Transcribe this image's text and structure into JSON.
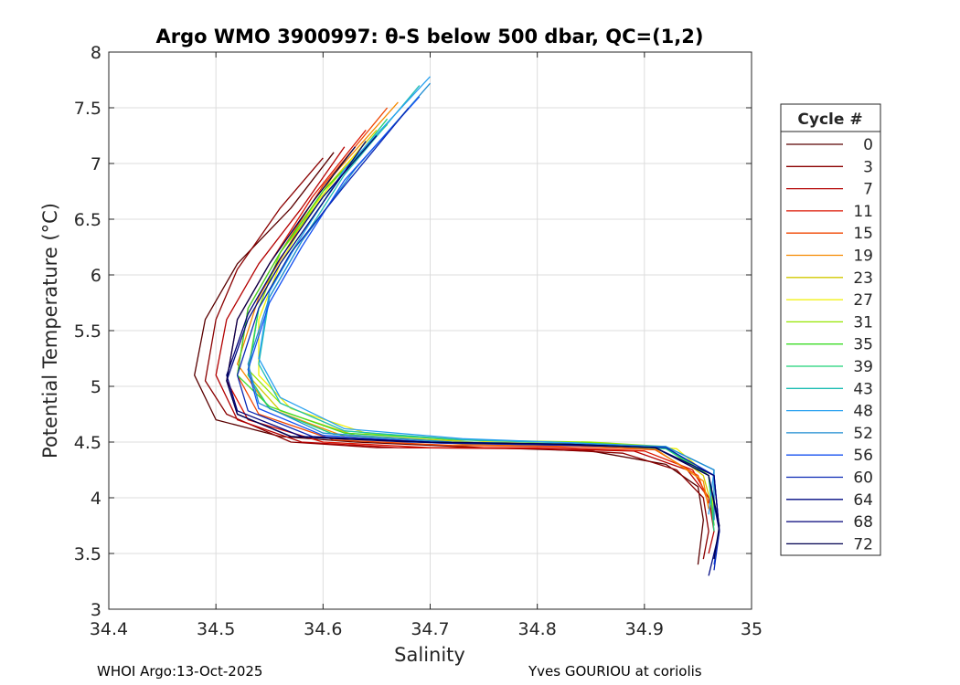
{
  "chart_data": {
    "type": "line",
    "title": "Argo WMO 3900997: θ-S below 500 dbar,  QC=(1,2)",
    "xlabel": "Salinity",
    "ylabel": "Potential Temperature (°C)",
    "xlim": [
      34.4,
      35.0
    ],
    "ylim": [
      3,
      8
    ],
    "xticks": [
      34.4,
      34.5,
      34.6,
      34.7,
      34.8,
      34.9,
      35.0
    ],
    "xtick_labels": [
      "34.4",
      "34.5",
      "34.6",
      "34.7",
      "34.8",
      "34.9",
      "35"
    ],
    "yticks": [
      3,
      3.5,
      4,
      4.5,
      5,
      5.5,
      6,
      6.5,
      7,
      7.5,
      8
    ],
    "ytick_labels": [
      "3",
      "3.5",
      "4",
      "4.5",
      "5",
      "5.5",
      "6",
      "6.5",
      "7",
      "7.5",
      "8"
    ],
    "grid": true,
    "legend_position": "outside-right",
    "legend_title": "Cycle #",
    "series": [
      {
        "name": "0",
        "color": "#5a0000",
        "points": [
          [
            34.61,
            7.1
          ],
          [
            34.57,
            6.6
          ],
          [
            34.52,
            6.1
          ],
          [
            34.49,
            5.6
          ],
          [
            34.48,
            5.1
          ],
          [
            34.5,
            4.7
          ],
          [
            34.56,
            4.55
          ],
          [
            34.63,
            4.5
          ],
          [
            34.75,
            4.45
          ],
          [
            34.85,
            4.42
          ],
          [
            34.92,
            4.3
          ],
          [
            34.95,
            4.1
          ],
          [
            34.955,
            3.8
          ],
          [
            34.95,
            3.4
          ]
        ]
      },
      {
        "name": "3",
        "color": "#8a0000",
        "points": [
          [
            34.6,
            7.05
          ],
          [
            34.56,
            6.6
          ],
          [
            34.52,
            6.05
          ],
          [
            34.5,
            5.6
          ],
          [
            34.49,
            5.05
          ],
          [
            34.51,
            4.75
          ],
          [
            34.57,
            4.5
          ],
          [
            34.65,
            4.45
          ],
          [
            34.78,
            4.45
          ],
          [
            34.88,
            4.4
          ],
          [
            34.93,
            4.25
          ],
          [
            34.955,
            4.0
          ],
          [
            34.96,
            3.7
          ],
          [
            34.955,
            3.45
          ]
        ]
      },
      {
        "name": "7",
        "color": "#b40000",
        "points": [
          [
            34.62,
            7.15
          ],
          [
            34.58,
            6.6
          ],
          [
            34.54,
            6.1
          ],
          [
            34.51,
            5.6
          ],
          [
            34.5,
            5.1
          ],
          [
            34.52,
            4.7
          ],
          [
            34.58,
            4.5
          ],
          [
            34.67,
            4.45
          ],
          [
            34.8,
            4.44
          ],
          [
            34.89,
            4.42
          ],
          [
            34.94,
            4.25
          ],
          [
            34.96,
            4.0
          ],
          [
            34.965,
            3.7
          ],
          [
            34.96,
            3.5
          ]
        ]
      },
      {
        "name": "11",
        "color": "#dc1400",
        "points": [
          [
            34.64,
            7.3
          ],
          [
            34.59,
            6.7
          ],
          [
            34.55,
            6.1
          ],
          [
            34.52,
            5.6
          ],
          [
            34.51,
            5.05
          ],
          [
            34.53,
            4.7
          ],
          [
            34.6,
            4.5
          ],
          [
            34.7,
            4.45
          ],
          [
            34.82,
            4.45
          ],
          [
            34.9,
            4.42
          ],
          [
            34.945,
            4.25
          ],
          [
            34.96,
            4.0
          ],
          [
            34.965,
            3.75
          ]
        ]
      },
      {
        "name": "15",
        "color": "#f04600",
        "points": [
          [
            34.66,
            7.5
          ],
          [
            34.6,
            6.8
          ],
          [
            34.56,
            6.2
          ],
          [
            34.53,
            5.7
          ],
          [
            34.52,
            5.1
          ],
          [
            34.54,
            4.75
          ],
          [
            34.61,
            4.52
          ],
          [
            34.72,
            4.47
          ],
          [
            34.84,
            4.46
          ],
          [
            34.91,
            4.43
          ],
          [
            34.95,
            4.2
          ],
          [
            34.96,
            3.95
          ]
        ]
      },
      {
        "name": "19",
        "color": "#f58a00",
        "points": [
          [
            34.67,
            7.55
          ],
          [
            34.61,
            6.9
          ],
          [
            34.57,
            6.3
          ],
          [
            34.54,
            5.8
          ],
          [
            34.52,
            5.2
          ],
          [
            34.55,
            4.8
          ],
          [
            34.62,
            4.55
          ],
          [
            34.73,
            4.48
          ],
          [
            34.84,
            4.47
          ],
          [
            34.91,
            4.44
          ],
          [
            34.955,
            4.15
          ],
          [
            34.96,
            3.9
          ]
        ]
      },
      {
        "name": "23",
        "color": "#d2c800",
        "points": [
          [
            34.65,
            7.3
          ],
          [
            34.6,
            6.75
          ],
          [
            34.56,
            6.2
          ],
          [
            34.54,
            5.7
          ],
          [
            34.53,
            5.1
          ],
          [
            34.56,
            4.78
          ],
          [
            34.63,
            4.56
          ],
          [
            34.74,
            4.5
          ],
          [
            34.85,
            4.48
          ],
          [
            34.92,
            4.45
          ],
          [
            34.955,
            4.2
          ],
          [
            34.965,
            3.85
          ]
        ]
      },
      {
        "name": "27",
        "color": "#f0f000",
        "points": [
          [
            34.64,
            7.2
          ],
          [
            34.59,
            6.6
          ],
          [
            34.56,
            6.1
          ],
          [
            34.54,
            5.6
          ],
          [
            34.54,
            5.1
          ],
          [
            34.57,
            4.8
          ],
          [
            34.64,
            4.58
          ],
          [
            34.75,
            4.51
          ],
          [
            34.86,
            4.49
          ],
          [
            34.93,
            4.44
          ],
          [
            34.96,
            4.2
          ],
          [
            34.965,
            3.9
          ]
        ]
      },
      {
        "name": "31",
        "color": "#96e600",
        "points": [
          [
            34.65,
            7.25
          ],
          [
            34.6,
            6.7
          ],
          [
            34.56,
            6.2
          ],
          [
            34.54,
            5.7
          ],
          [
            34.53,
            5.15
          ],
          [
            34.56,
            4.85
          ],
          [
            34.62,
            4.6
          ],
          [
            34.72,
            4.52
          ],
          [
            34.85,
            4.5
          ],
          [
            34.92,
            4.46
          ],
          [
            34.96,
            4.2
          ],
          [
            34.965,
            3.8
          ]
        ]
      },
      {
        "name": "35",
        "color": "#3cdc28",
        "points": [
          [
            34.66,
            7.35
          ],
          [
            34.6,
            6.75
          ],
          [
            34.56,
            6.2
          ],
          [
            34.53,
            5.7
          ],
          [
            34.52,
            5.1
          ],
          [
            34.55,
            4.82
          ],
          [
            34.62,
            4.58
          ],
          [
            34.73,
            4.52
          ],
          [
            34.85,
            4.49
          ],
          [
            34.92,
            4.45
          ],
          [
            34.96,
            4.2
          ],
          [
            34.965,
            3.75
          ]
        ]
      },
      {
        "name": "39",
        "color": "#1ed278",
        "points": [
          [
            34.66,
            7.4
          ],
          [
            34.61,
            6.8
          ],
          [
            34.57,
            6.2
          ],
          [
            34.54,
            5.7
          ],
          [
            34.53,
            5.1
          ],
          [
            34.55,
            4.8
          ],
          [
            34.61,
            4.57
          ],
          [
            34.72,
            4.5
          ],
          [
            34.84,
            4.48
          ],
          [
            34.92,
            4.44
          ],
          [
            34.96,
            4.2
          ],
          [
            34.965,
            3.7
          ]
        ]
      },
      {
        "name": "43",
        "color": "#1ebeb4",
        "points": [
          [
            34.69,
            7.7
          ],
          [
            34.62,
            6.9
          ],
          [
            34.58,
            6.3
          ],
          [
            34.55,
            5.8
          ],
          [
            34.54,
            5.2
          ],
          [
            34.56,
            4.85
          ],
          [
            34.62,
            4.6
          ],
          [
            34.73,
            4.52
          ],
          [
            34.84,
            4.49
          ],
          [
            34.92,
            4.45
          ],
          [
            34.965,
            4.2
          ],
          [
            34.965,
            3.8
          ]
        ]
      },
      {
        "name": "48",
        "color": "#28a0f0",
        "points": [
          [
            34.7,
            7.78
          ],
          [
            34.62,
            6.95
          ],
          [
            34.58,
            6.35
          ],
          [
            34.55,
            5.85
          ],
          [
            34.54,
            5.25
          ],
          [
            34.56,
            4.9
          ],
          [
            34.62,
            4.62
          ],
          [
            34.73,
            4.53
          ],
          [
            34.84,
            4.49
          ],
          [
            34.92,
            4.46
          ],
          [
            34.965,
            4.25
          ],
          [
            34.96,
            3.85
          ]
        ]
      },
      {
        "name": "52",
        "color": "#1e8cd2",
        "points": [
          [
            34.7,
            7.72
          ],
          [
            34.63,
            6.95
          ],
          [
            34.58,
            6.3
          ],
          [
            34.55,
            5.8
          ],
          [
            34.53,
            5.2
          ],
          [
            34.54,
            4.85
          ],
          [
            34.6,
            4.58
          ],
          [
            34.72,
            4.5
          ],
          [
            34.84,
            4.48
          ],
          [
            34.92,
            4.46
          ],
          [
            34.965,
            4.25
          ],
          [
            34.965,
            3.8
          ]
        ]
      },
      {
        "name": "56",
        "color": "#1450f0",
        "points": [
          [
            34.69,
            7.6
          ],
          [
            34.62,
            6.85
          ],
          [
            34.58,
            6.25
          ],
          [
            34.55,
            5.75
          ],
          [
            34.53,
            5.15
          ],
          [
            34.54,
            4.8
          ],
          [
            34.6,
            4.56
          ],
          [
            34.72,
            4.49
          ],
          [
            34.84,
            4.47
          ],
          [
            34.92,
            4.45
          ],
          [
            34.965,
            4.2
          ],
          [
            34.97,
            3.7
          ],
          [
            34.965,
            3.4
          ]
        ]
      },
      {
        "name": "60",
        "color": "#0a28b4",
        "points": [
          [
            34.68,
            7.5
          ],
          [
            34.62,
            6.8
          ],
          [
            34.57,
            6.2
          ],
          [
            34.54,
            5.7
          ],
          [
            34.52,
            5.1
          ],
          [
            34.53,
            4.78
          ],
          [
            34.59,
            4.55
          ],
          [
            34.71,
            4.49
          ],
          [
            34.84,
            4.47
          ],
          [
            34.92,
            4.45
          ],
          [
            34.965,
            4.2
          ],
          [
            34.97,
            3.7
          ],
          [
            34.965,
            3.35
          ]
        ]
      },
      {
        "name": "64",
        "color": "#000a82",
        "points": [
          [
            34.64,
            7.2
          ],
          [
            34.6,
            6.65
          ],
          [
            34.56,
            6.1
          ],
          [
            34.53,
            5.6
          ],
          [
            34.51,
            5.05
          ],
          [
            34.52,
            4.75
          ],
          [
            34.57,
            4.55
          ],
          [
            34.68,
            4.5
          ],
          [
            34.82,
            4.48
          ],
          [
            34.91,
            4.45
          ],
          [
            34.96,
            4.2
          ],
          [
            34.97,
            3.7
          ],
          [
            34.96,
            3.3
          ]
        ]
      },
      {
        "name": "68",
        "color": "#000078",
        "points": [
          [
            34.65,
            7.25
          ],
          [
            34.6,
            6.7
          ],
          [
            34.56,
            6.15
          ],
          [
            34.53,
            5.65
          ],
          [
            34.51,
            5.1
          ],
          [
            34.52,
            4.78
          ],
          [
            34.58,
            4.55
          ],
          [
            34.7,
            4.5
          ],
          [
            34.83,
            4.48
          ],
          [
            34.91,
            4.45
          ],
          [
            34.965,
            4.2
          ],
          [
            34.97,
            3.7
          ]
        ]
      },
      {
        "name": "72",
        "color": "#000050",
        "points": [
          [
            34.63,
            7.15
          ],
          [
            34.59,
            6.65
          ],
          [
            34.55,
            6.1
          ],
          [
            34.52,
            5.6
          ],
          [
            34.51,
            5.05
          ],
          [
            34.52,
            4.75
          ],
          [
            34.57,
            4.55
          ],
          [
            34.69,
            4.5
          ],
          [
            34.83,
            4.48
          ],
          [
            34.91,
            4.45
          ],
          [
            34.96,
            4.2
          ],
          [
            34.97,
            3.75
          ],
          [
            34.965,
            3.45
          ]
        ]
      }
    ]
  },
  "footer": {
    "left": "WHOI Argo:13-Oct-2025",
    "right": "Yves GOURIOU at coriolis"
  }
}
